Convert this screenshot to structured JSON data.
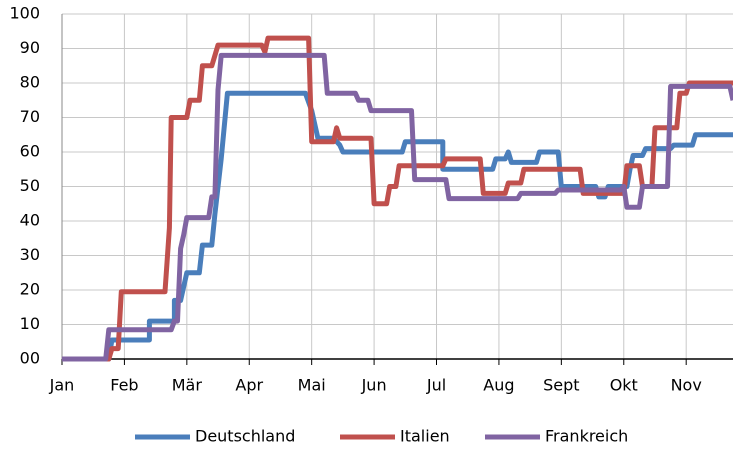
{
  "chart_data": {
    "type": "line",
    "xlim": [
      0,
      10.75
    ],
    "xticks": [
      {
        "value": 0,
        "label": "Jan"
      },
      {
        "value": 1,
        "label": "Feb"
      },
      {
        "value": 2,
        "label": "Mär"
      },
      {
        "value": 3,
        "label": "Apr"
      },
      {
        "value": 4,
        "label": "Mai"
      },
      {
        "value": 5,
        "label": "Jun"
      },
      {
        "value": 6,
        "label": "Jul"
      },
      {
        "value": 7,
        "label": "Aug"
      },
      {
        "value": 8,
        "label": "Sept"
      },
      {
        "value": 9,
        "label": "Okt"
      },
      {
        "value": 10,
        "label": "Nov"
      }
    ],
    "ylim": [
      0,
      100
    ],
    "yticks": [
      {
        "value": 0,
        "label": "00"
      },
      10,
      20,
      30,
      40,
      50,
      60,
      70,
      80,
      90,
      100
    ],
    "grid": true,
    "legend": "bottom",
    "series": [
      {
        "name": "Deutschland",
        "color": "#4a7ebb",
        "x": [
          0,
          0.75,
          0.8,
          1.4,
          1.4,
          1.8,
          1.8,
          1.9,
          2.0,
          2.2,
          2.25,
          2.4,
          2.45,
          2.55,
          2.65,
          3.9,
          4.0,
          4.1,
          4.35,
          4.45,
          4.5,
          5.45,
          5.5,
          6.1,
          6.1,
          6.9,
          6.95,
          7.1,
          7.15,
          7.2,
          7.6,
          7.65,
          7.95,
          8.0,
          8.55,
          8.6,
          8.7,
          8.75,
          9.05,
          9.1,
          9.15,
          9.3,
          9.35,
          9.75,
          9.8,
          10.1,
          10.15,
          10.75
        ],
        "values": [
          0,
          0,
          5.5,
          5.5,
          11,
          11,
          17,
          17,
          25,
          25,
          33,
          33,
          42,
          58,
          77,
          77,
          72,
          64,
          64,
          62,
          60,
          60,
          63,
          63,
          55,
          55,
          58,
          58,
          60,
          57,
          57,
          60,
          60,
          50,
          50,
          47,
          47,
          50,
          50,
          55,
          59,
          59,
          61,
          61,
          62,
          62,
          65,
          65
        ]
      },
      {
        "name": "Italien",
        "color": "#c0504d",
        "x": [
          0,
          0.75,
          0.8,
          0.9,
          0.95,
          1.65,
          1.72,
          1.75,
          2.0,
          2.05,
          2.2,
          2.25,
          2.4,
          2.5,
          3.2,
          3.25,
          3.3,
          3.95,
          4.0,
          4.35,
          4.4,
          4.45,
          4.95,
          5.0,
          5.2,
          5.25,
          5.35,
          5.4,
          6.1,
          6.15,
          6.7,
          6.75,
          7.1,
          7.15,
          7.35,
          7.4,
          8.3,
          8.35,
          9.0,
          9.05,
          9.25,
          9.3,
          9.45,
          9.5,
          9.85,
          9.9,
          10.0,
          10.05,
          10.75
        ],
        "values": [
          0,
          0,
          3,
          3,
          19.5,
          19.5,
          38,
          70,
          70,
          75,
          75,
          85,
          85,
          91,
          91,
          89,
          93,
          93,
          63,
          63,
          67,
          64,
          64,
          45,
          45,
          50,
          50,
          56,
          56,
          58,
          58,
          48,
          48,
          51,
          51,
          55,
          55,
          48,
          48,
          56,
          56,
          50,
          50,
          67,
          67,
          77,
          77,
          80,
          80
        ]
      },
      {
        "name": "Frankreich",
        "color": "#8064a2",
        "x": [
          0,
          0.7,
          0.75,
          1.75,
          1.8,
          1.85,
          1.9,
          1.95,
          2.0,
          2.35,
          2.4,
          2.45,
          2.5,
          2.55,
          4.2,
          4.25,
          4.7,
          4.75,
          4.9,
          4.95,
          5.6,
          5.65,
          6.15,
          6.2,
          7.3,
          7.35,
          7.9,
          7.95,
          8.95,
          9.0,
          9.05,
          9.25,
          9.3,
          9.7,
          9.75,
          10.7,
          10.75
        ],
        "values": [
          0,
          0,
          8.5,
          8.5,
          11,
          11,
          32,
          36,
          41,
          41,
          47,
          47,
          78,
          88,
          88,
          77,
          77,
          75,
          75,
          72,
          72,
          52,
          52,
          46.5,
          46.5,
          48,
          48,
          49,
          49,
          50,
          44,
          44,
          50,
          50,
          79,
          79,
          75
        ]
      }
    ]
  }
}
